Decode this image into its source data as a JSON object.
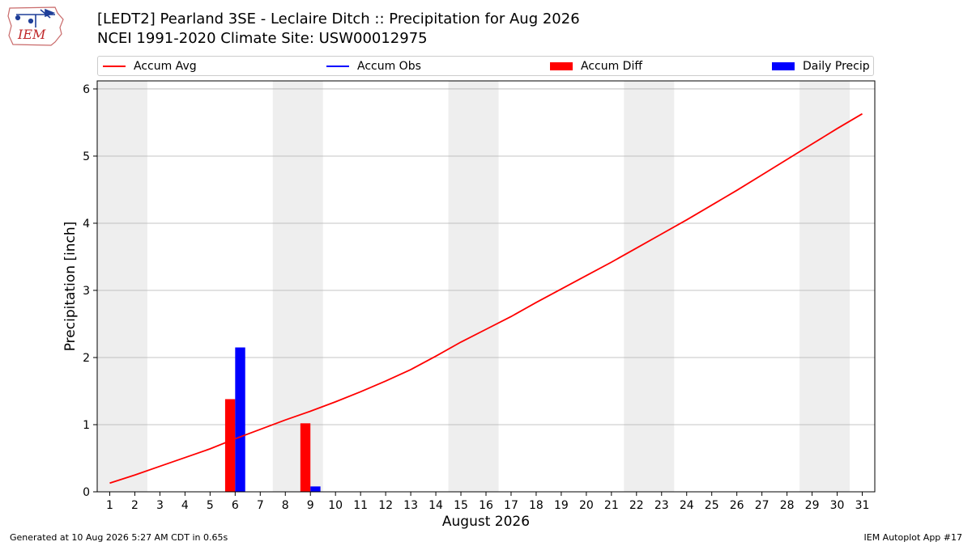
{
  "logo": {
    "text": "IEM",
    "icon": "iowa-state-outline-with-weather-instruments"
  },
  "title_line1": "[LEDT2] Pearland 3SE - Leclaire Ditch :: Precipitation for Aug 2026",
  "title_line2": "NCEI 1991-2020 Climate Site: USW00012975",
  "legend": [
    {
      "label": "Accum Avg",
      "kind": "line",
      "color": "#ff0000"
    },
    {
      "label": "Accum Obs",
      "kind": "line",
      "color": "#0000ff"
    },
    {
      "label": "Accum Diff",
      "kind": "patch",
      "color": "#ff0000"
    },
    {
      "label": "Daily Precip",
      "kind": "patch",
      "color": "#0000ff"
    }
  ],
  "footer_left": "Generated at 10 Aug 2026 5:27 AM CDT in 0.65s",
  "footer_right": "IEM Autoplot App #17",
  "chart_data": {
    "type": "bar",
    "xlabel": "August 2026",
    "ylabel": "Precipitation [inch]",
    "xlim": [
      0.5,
      31.5
    ],
    "ylim": [
      0,
      6.12
    ],
    "yticks": [
      0,
      1,
      2,
      3,
      4,
      5,
      6
    ],
    "xticks": [
      1,
      2,
      3,
      4,
      5,
      6,
      7,
      8,
      9,
      10,
      11,
      12,
      13,
      14,
      15,
      16,
      17,
      18,
      19,
      20,
      21,
      22,
      23,
      24,
      25,
      26,
      27,
      28,
      29,
      30,
      31
    ],
    "grid": "horizontal",
    "weekend_shading": [
      [
        0.5,
        2.5
      ],
      [
        7.5,
        9.5
      ],
      [
        14.5,
        16.5
      ],
      [
        21.5,
        23.5
      ],
      [
        28.5,
        30.5
      ]
    ],
    "weekend_color": "#eeeeee",
    "accum_avg": {
      "name": "Accum Avg",
      "color": "#ff0000",
      "days": [
        1,
        2,
        3,
        4,
        5,
        6,
        7,
        8,
        9,
        10,
        11,
        12,
        13,
        14,
        15,
        16,
        17,
        18,
        19,
        20,
        21,
        22,
        23,
        24,
        25,
        26,
        27,
        28,
        29,
        30,
        31
      ],
      "values": [
        0.13,
        0.25,
        0.38,
        0.51,
        0.64,
        0.79,
        0.93,
        1.07,
        1.2,
        1.34,
        1.49,
        1.65,
        1.82,
        2.02,
        2.23,
        2.42,
        2.61,
        2.82,
        3.02,
        3.22,
        3.42,
        3.63,
        3.84,
        4.05,
        4.27,
        4.49,
        4.72,
        4.95,
        5.18,
        5.41,
        5.63
      ]
    },
    "accum_obs": {
      "name": "Accum Obs",
      "color": "#0000ff",
      "days": [],
      "values": []
    },
    "accum_diff": {
      "name": "Accum Diff",
      "color": "#ff0000",
      "days": [
        6,
        9
      ],
      "values": [
        1.38,
        1.02
      ]
    },
    "daily_precip": {
      "name": "Daily Precip",
      "color": "#0000ff",
      "days": [
        6,
        9
      ],
      "values": [
        2.15,
        0.08
      ]
    }
  }
}
